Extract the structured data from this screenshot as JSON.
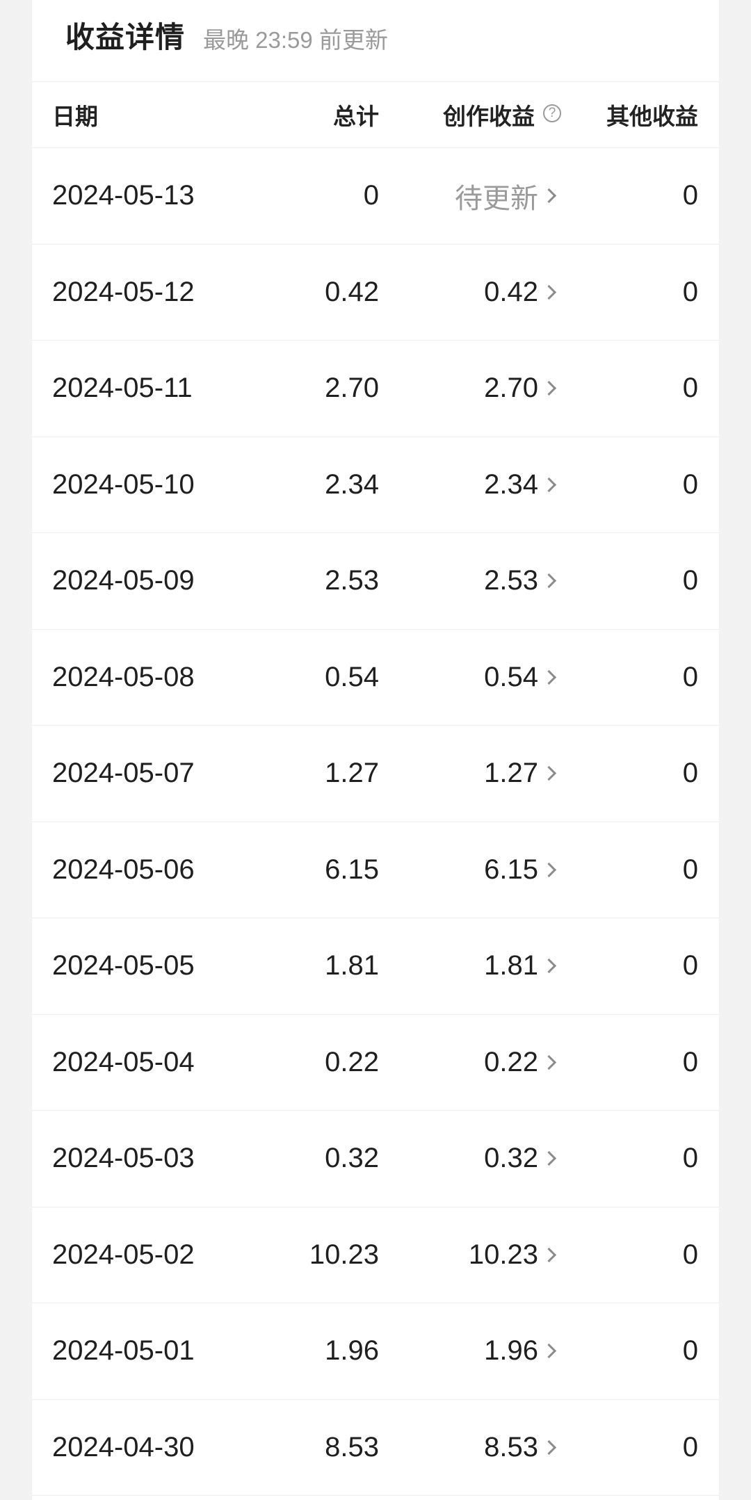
{
  "header": {
    "title": "收益详情",
    "subtitle": "最晚 23:59 前更新"
  },
  "columns": {
    "date": "日期",
    "total": "总计",
    "creation": "创作收益",
    "other": "其他收益",
    "help_icon_glyph": "?"
  },
  "rows": [
    {
      "date": "2024-05-13",
      "total": "0",
      "creation": "待更新",
      "other": "0"
    },
    {
      "date": "2024-05-12",
      "total": "0.42",
      "creation": "0.42",
      "other": "0"
    },
    {
      "date": "2024-05-11",
      "total": "2.70",
      "creation": "2.70",
      "other": "0"
    },
    {
      "date": "2024-05-10",
      "total": "2.34",
      "creation": "2.34",
      "other": "0"
    },
    {
      "date": "2024-05-09",
      "total": "2.53",
      "creation": "2.53",
      "other": "0"
    },
    {
      "date": "2024-05-08",
      "total": "0.54",
      "creation": "0.54",
      "other": "0"
    },
    {
      "date": "2024-05-07",
      "total": "1.27",
      "creation": "1.27",
      "other": "0"
    },
    {
      "date": "2024-05-06",
      "total": "6.15",
      "creation": "6.15",
      "other": "0"
    },
    {
      "date": "2024-05-05",
      "total": "1.81",
      "creation": "1.81",
      "other": "0"
    },
    {
      "date": "2024-05-04",
      "total": "0.22",
      "creation": "0.22",
      "other": "0"
    },
    {
      "date": "2024-05-03",
      "total": "0.32",
      "creation": "0.32",
      "other": "0"
    },
    {
      "date": "2024-05-02",
      "total": "10.23",
      "creation": "10.23",
      "other": "0"
    },
    {
      "date": "2024-05-01",
      "total": "1.96",
      "creation": "1.96",
      "other": "0"
    },
    {
      "date": "2024-04-30",
      "total": "8.53",
      "creation": "8.53",
      "other": "0"
    }
  ]
}
